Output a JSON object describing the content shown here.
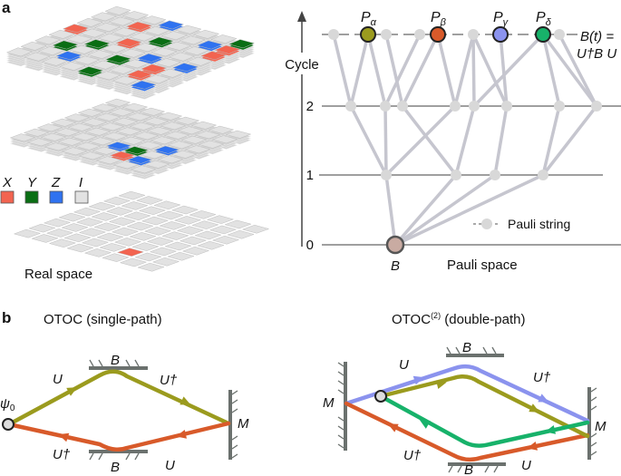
{
  "panel_a": {
    "label": "a",
    "legend": [
      {
        "label": "X",
        "color": "#f26450"
      },
      {
        "label": "Y",
        "color": "#0a6e14"
      },
      {
        "label": "Z",
        "color": "#2f72f0"
      },
      {
        "label": "I",
        "color": "#e2e2e2"
      }
    ],
    "real_space_label": "Real space",
    "axis_label": "Cycle",
    "ticks": [
      "0",
      "1",
      "2"
    ],
    "pauli_space_label": "Pauli space",
    "pauli_string_legend": "Pauli string",
    "operator_label": "B",
    "top_label_line1": "B(t) =",
    "top_label_line2": "U†B U",
    "highlighted": [
      {
        "label": "Pα",
        "color": "#9b9b1e"
      },
      {
        "label": "Pβ",
        "color": "#d85a2a"
      },
      {
        "label": "Pγ",
        "color": "#8b93ee"
      },
      {
        "label": "Pδ",
        "color": "#17b26a"
      }
    ],
    "node_color": "#d8d8d8",
    "edge_color": "#c6c6cf",
    "b_color": "#c9aba2"
  },
  "panel_b": {
    "label": "b",
    "single": {
      "title": "OTOC (single-path)",
      "psi": "ψ0",
      "U": "U",
      "Udag": "U†",
      "B": "B",
      "M": "M"
    },
    "double": {
      "title": "OTOC",
      "title_sup": "(2)",
      "title_rest": " (double-path)",
      "U": "U",
      "Udag": "U†",
      "B": "B",
      "M": "M"
    },
    "colors": {
      "forward": "#9b9b1e",
      "backward": "#d85a2a",
      "blue": "#8b93ee",
      "green": "#17b26a",
      "mirror": "#6b716e"
    }
  }
}
